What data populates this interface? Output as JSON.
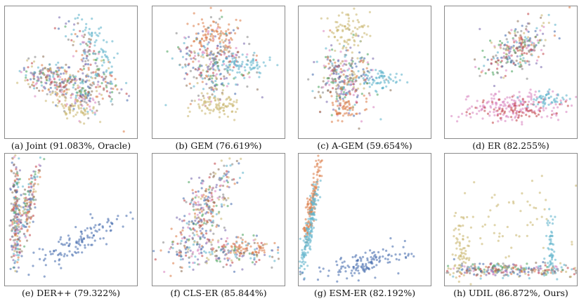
{
  "figure": {
    "palette": [
      "#4c72b0",
      "#dd8452",
      "#55a868",
      "#c44e52",
      "#8172b3",
      "#937860",
      "#da8bc3",
      "#8c8c8c",
      "#ccb974",
      "#64b5cd"
    ]
  },
  "chart_data": [
    {
      "type": "scatter",
      "caption": "(a) Joint (91.083%, Oracle)",
      "xlim": [
        0,
        100
      ],
      "ylim": [
        0,
        100
      ],
      "clusters": [
        {
          "cx": 35,
          "cy": 45,
          "sx": 12,
          "sy": 6,
          "rot": -18,
          "n": 220,
          "mix": true
        },
        {
          "cx": 58,
          "cy": 34,
          "sx": 9,
          "sy": 8,
          "rot": 0,
          "n": 140,
          "mix": true
        },
        {
          "cx": 68,
          "cy": 55,
          "sx": 5,
          "sy": 18,
          "rot": 30,
          "n": 140,
          "mix": true
        },
        {
          "cx": 50,
          "cy": 24,
          "sx": 10,
          "sy": 4,
          "rot": -20,
          "n": 60,
          "color": 8
        },
        {
          "cx": 72,
          "cy": 68,
          "sx": 4,
          "sy": 14,
          "rot": 30,
          "n": 60,
          "color": 9
        }
      ]
    },
    {
      "type": "scatter",
      "caption": "(b) GEM (76.619%)",
      "xlim": [
        0,
        100
      ],
      "ylim": [
        0,
        100
      ],
      "clusters": [
        {
          "cx": 45,
          "cy": 58,
          "sx": 13,
          "sy": 13,
          "rot": 0,
          "n": 320,
          "mix": true
        },
        {
          "cx": 47,
          "cy": 78,
          "sx": 9,
          "sy": 6,
          "rot": 10,
          "n": 70,
          "color": 1
        },
        {
          "cx": 48,
          "cy": 26,
          "sx": 10,
          "sy": 5,
          "rot": 0,
          "n": 90,
          "color": 8
        },
        {
          "cx": 68,
          "cy": 55,
          "sx": 10,
          "sy": 4,
          "rot": 0,
          "n": 70,
          "color": 9
        }
      ]
    },
    {
      "type": "scatter",
      "caption": "(c) A-GEM (59.654%)",
      "xlim": [
        0,
        100
      ],
      "ylim": [
        0,
        100
      ],
      "clusters": [
        {
          "cx": 35,
          "cy": 45,
          "sx": 10,
          "sy": 13,
          "rot": 0,
          "n": 320,
          "mix": true
        },
        {
          "cx": 37,
          "cy": 82,
          "sx": 7,
          "sy": 8,
          "rot": 35,
          "n": 80,
          "color": 8
        },
        {
          "cx": 62,
          "cy": 44,
          "sx": 9,
          "sy": 4,
          "rot": 0,
          "n": 60,
          "color": 9
        },
        {
          "cx": 34,
          "cy": 22,
          "sx": 6,
          "sy": 5,
          "rot": 0,
          "n": 50,
          "color": 1
        }
      ]
    },
    {
      "type": "scatter",
      "caption": "(d) ER (82.255%)",
      "xlim": [
        0,
        100
      ],
      "ylim": [
        0,
        100
      ],
      "clusters": [
        {
          "cx": 55,
          "cy": 68,
          "sx": 15,
          "sy": 8,
          "rot": 35,
          "n": 260,
          "mix": true
        },
        {
          "cx": 50,
          "cy": 24,
          "sx": 21,
          "sy": 6,
          "rot": 0,
          "n": 180,
          "color": 6
        },
        {
          "cx": 55,
          "cy": 22,
          "sx": 16,
          "sy": 4,
          "rot": 0,
          "n": 70,
          "color": 3
        },
        {
          "cx": 78,
          "cy": 30,
          "sx": 9,
          "sy": 3,
          "rot": 0,
          "n": 50,
          "color": 9
        }
      ]
    },
    {
      "type": "scatter",
      "caption": "(e) DER++ (79.322%)",
      "xlim": [
        0,
        100
      ],
      "ylim": [
        0,
        100
      ],
      "clusters": [
        {
          "cx": 8,
          "cy": 55,
          "sx": 1.8,
          "sy": 20,
          "rot": 0,
          "n": 200,
          "mix": true
        },
        {
          "cx": 18,
          "cy": 60,
          "sx": 2.2,
          "sy": 17,
          "rot": -12,
          "n": 160,
          "mix": true
        },
        {
          "cx": 55,
          "cy": 33,
          "sx": 21,
          "sy": 5,
          "rot": 28,
          "n": 120,
          "color": 0
        }
      ]
    },
    {
      "type": "scatter",
      "caption": "(f) CLS-ER (85.844%)",
      "xlim": [
        0,
        100
      ],
      "ylim": [
        0,
        100
      ],
      "clusters": [
        {
          "cx": 40,
          "cy": 58,
          "sx": 8,
          "sy": 22,
          "rot": -28,
          "n": 300,
          "mix": true
        },
        {
          "cx": 55,
          "cy": 26,
          "sx": 24,
          "sy": 6,
          "rot": 0,
          "n": 220,
          "mix": true
        },
        {
          "cx": 70,
          "cy": 28,
          "sx": 9,
          "sy": 4,
          "rot": 0,
          "n": 50,
          "color": 1
        }
      ]
    },
    {
      "type": "scatter",
      "caption": "(g) ESM-ER (82.192%)",
      "xlim": [
        0,
        100
      ],
      "ylim": [
        0,
        100
      ],
      "clusters": [
        {
          "cx": 10,
          "cy": 62,
          "sx": 1.6,
          "sy": 18,
          "rot": -10,
          "n": 150,
          "color": 1
        },
        {
          "cx": 8,
          "cy": 42,
          "sx": 1.6,
          "sy": 20,
          "rot": -10,
          "n": 150,
          "color": 9
        },
        {
          "cx": 48,
          "cy": 16,
          "sx": 17,
          "sy": 4,
          "rot": 12,
          "n": 130,
          "color": 0
        }
      ]
    },
    {
      "type": "scatter",
      "caption": "(h) UDIL (86.872%, Ours)",
      "xlim": [
        0,
        100
      ],
      "ylim": [
        0,
        100
      ],
      "clusters": [
        {
          "cx": 48,
          "cy": 12,
          "sx": 26,
          "sy": 2.5,
          "rot": 0,
          "n": 280,
          "mix": true
        },
        {
          "cx": 12,
          "cy": 30,
          "sx": 3,
          "sy": 15,
          "rot": 0,
          "n": 70,
          "color": 8
        },
        {
          "cx": 80,
          "cy": 30,
          "sx": 2,
          "sy": 14,
          "rot": 0,
          "n": 60,
          "color": 9
        },
        {
          "cx": 50,
          "cy": 50,
          "sx": 26,
          "sy": 24,
          "rot": 0,
          "n": 60,
          "color": 8
        }
      ]
    }
  ]
}
